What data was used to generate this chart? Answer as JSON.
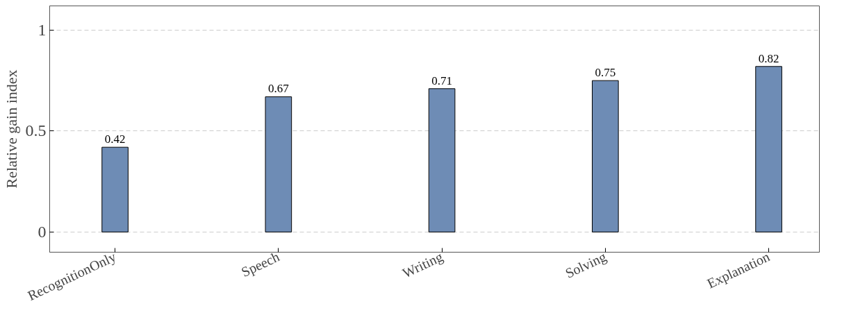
{
  "chart_data": {
    "type": "bar",
    "ylabel": "Relative gain index",
    "categories": [
      "RecognitionOnly",
      "Speech",
      "Writing",
      "Solving",
      "Explanation"
    ],
    "values": [
      0.42,
      0.67,
      0.71,
      0.75,
      0.82
    ],
    "color": "#6e8cb5",
    "ylim": [
      -0.1,
      1.12
    ],
    "yticks": [
      0,
      0.5,
      1
    ],
    "grid": "y",
    "data_labels": true
  }
}
